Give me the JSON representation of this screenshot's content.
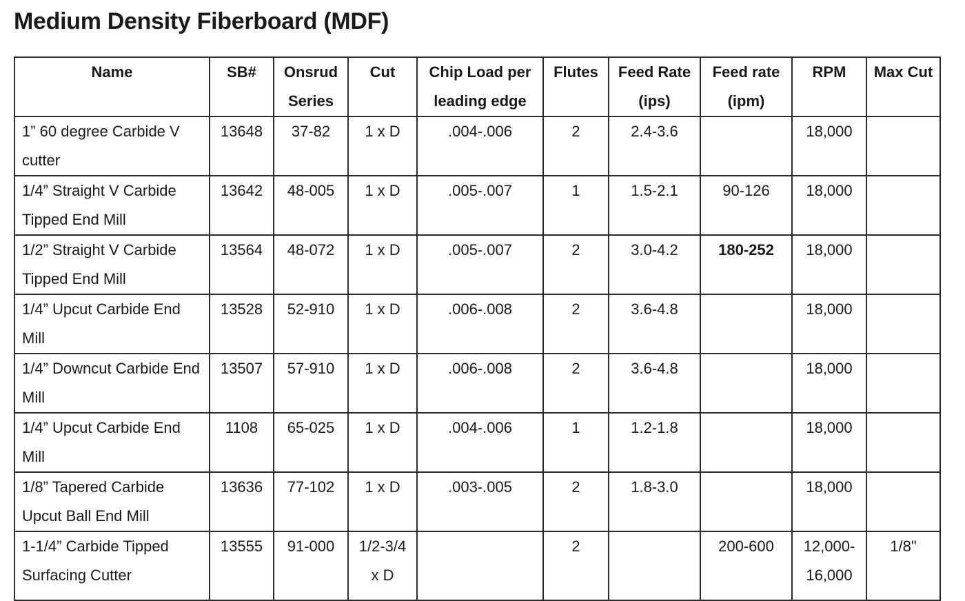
{
  "title": "Medium Density Fiberboard (MDF)",
  "columns": [
    "Name",
    "SB#",
    "Onsrud Series",
    "Cut",
    "Chip Load per leading edge",
    "Flutes",
    "Feed Rate (ips)",
    "Feed rate (ipm)",
    "RPM",
    "Max Cut"
  ],
  "rows": [
    {
      "name": "1” 60 degree Carbide V cutter",
      "sb": "13648",
      "series": "37-82",
      "cut": "1 x D",
      "chip": ".004-.006",
      "flutes": "2",
      "ips": "2.4-3.6",
      "ipm": "",
      "rpm": "18,000",
      "max": ""
    },
    {
      "name": "1/4” Straight V Carbide Tipped End Mill",
      "sb": "13642",
      "series": "48-005",
      "cut": "1 x D",
      "chip": ".005-.007",
      "flutes": "1",
      "ips": "1.5-2.1",
      "ipm": "90-126",
      "rpm": "18,000",
      "max": ""
    },
    {
      "name": "1/2” Straight V Carbide Tipped End Mill",
      "sb": "13564",
      "series": "48-072",
      "cut": "1 x D",
      "chip": ".005-.007",
      "flutes": "2",
      "ips": "3.0-4.2",
      "ipm": "180-252",
      "rpm": "18,000",
      "max": ""
    },
    {
      "name": "1/4” Upcut Carbide End Mill",
      "sb": "13528",
      "series": "52-910",
      "cut": "1 x D",
      "chip": ".006-.008",
      "flutes": "2",
      "ips": "3.6-4.8",
      "ipm": "",
      "rpm": "18,000",
      "max": ""
    },
    {
      "name": "1/4” Downcut Carbide End Mill",
      "sb": "13507",
      "series": "57-910",
      "cut": "1 x D",
      "chip": ".006-.008",
      "flutes": "2",
      "ips": "3.6-4.8",
      "ipm": "",
      "rpm": "18,000",
      "max": ""
    },
    {
      "name": "1/4” Upcut Carbide End Mill",
      "sb": "1108",
      "series": "65-025",
      "cut": "1 x D",
      "chip": ".004-.006",
      "flutes": "1",
      "ips": "1.2-1.8",
      "ipm": "",
      "rpm": "18,000",
      "max": ""
    },
    {
      "name": "1/8” Tapered Carbide Upcut Ball End Mill",
      "sb": "13636",
      "series": "77-102",
      "cut": "1 x D",
      "chip": ".003-.005",
      "flutes": "2",
      "ips": "1.8-3.0",
      "ipm": "",
      "rpm": "18,000",
      "max": ""
    },
    {
      "name": "1-1/4” Carbide Tipped Surfacing Cutter",
      "sb": "13555",
      "series": "91-000",
      "cut": "1/2-3/4 x D",
      "chip": "",
      "flutes": "2",
      "ips": "",
      "ipm": "200-600",
      "rpm": "12,000-16,000",
      "max": "1/8\""
    }
  ]
}
